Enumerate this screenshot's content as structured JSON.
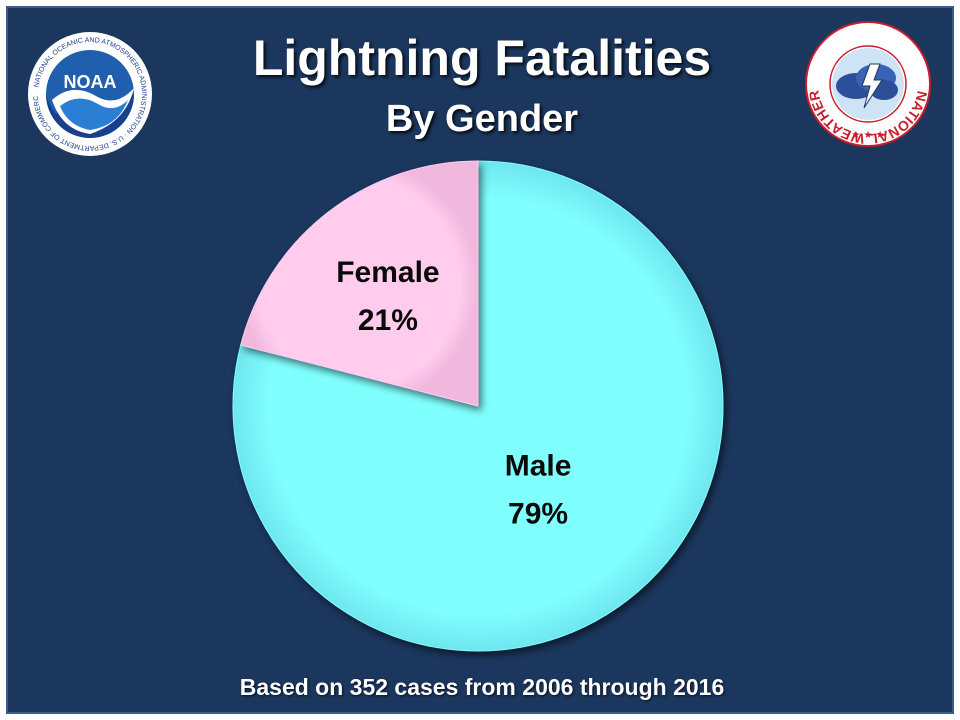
{
  "header": {
    "title": "Lightning Fatalities",
    "subtitle": "By Gender"
  },
  "footnote": "Based on 352 cases from 2006 through 2016",
  "logos": {
    "left": {
      "icon": "noaa-logo",
      "text": "NOAA",
      "ring_text": "NATIONAL OCEANIC AND ATMOSPHERIC ADMINISTRATION · U.S. DEPARTMENT OF COMMERCE"
    },
    "right": {
      "icon": "nws-logo",
      "ring_text": "NATIONAL WEATHER SERVICE"
    }
  },
  "colors": {
    "background": "#1b375e",
    "male": "#80ffff",
    "female": "#ffccee"
  },
  "chart_data": {
    "type": "pie",
    "title": "Lightning Fatalities",
    "subtitle": "By Gender",
    "slices": [
      {
        "label": "Male",
        "value": 79,
        "value_label": "79%",
        "color": "#80ffff"
      },
      {
        "label": "Female",
        "value": 21,
        "value_label": "21%",
        "color": "#ffccee"
      }
    ],
    "start_angle_deg": 0,
    "direction": "clockwise",
    "legend": "none",
    "annotation": "Based on 352 cases from 2006 through 2016"
  }
}
